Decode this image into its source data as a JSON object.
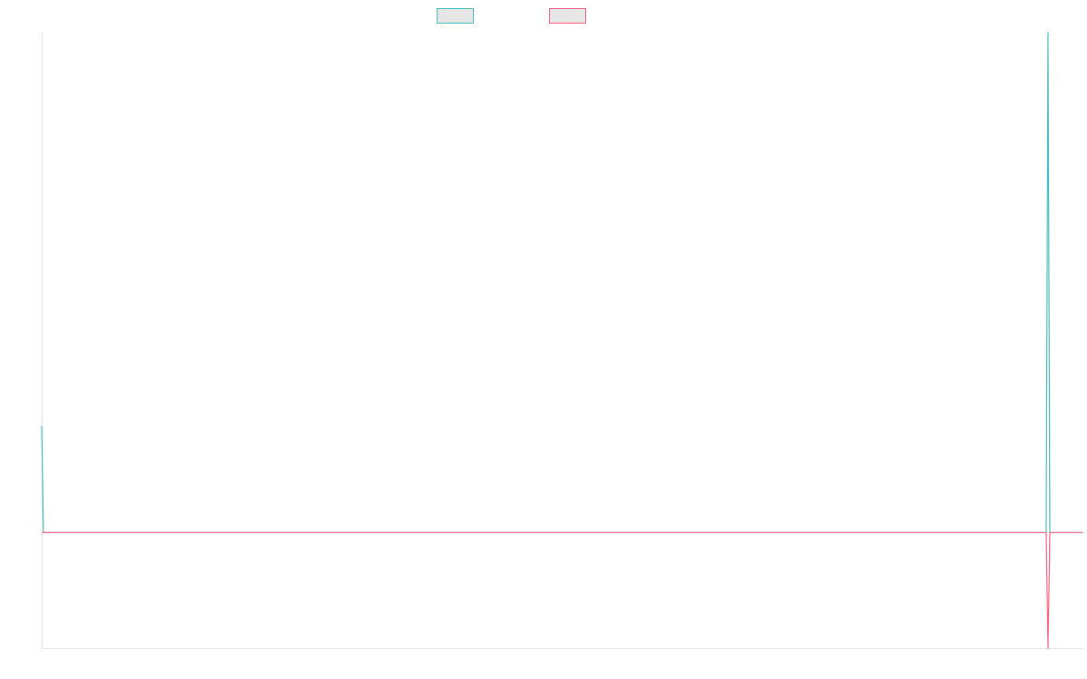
{
  "chart_data": {
    "type": "line",
    "legend_position": "top-center",
    "grid": false,
    "x": [
      0,
      1,
      2,
      3,
      4,
      5,
      6,
      7,
      8,
      9,
      10,
      11,
      12,
      13,
      14,
      15,
      16,
      17,
      18,
      19,
      20,
      21,
      22,
      23,
      24,
      25,
      26,
      27,
      28,
      29,
      30,
      31,
      32,
      33,
      34,
      35,
      36,
      37,
      38,
      39,
      40,
      41,
      42,
      43,
      44,
      45,
      46,
      47,
      48,
      49,
      50,
      51,
      52,
      53,
      54,
      55,
      56,
      57,
      58,
      59,
      60,
      61,
      62,
      63,
      64,
      65,
      66,
      67,
      68,
      69,
      70,
      71,
      72,
      73,
      74,
      75,
      76,
      77,
      78,
      79,
      80,
      81,
      82,
      83,
      84,
      85,
      86,
      87,
      88,
      89,
      90,
      91,
      92,
      93,
      94,
      95,
      96,
      97,
      98,
      99,
      100,
      101,
      102,
      103,
      104,
      105,
      106,
      107,
      108,
      109,
      110,
      111,
      112,
      113,
      114,
      115,
      116,
      117,
      118,
      119,
      120,
      121,
      122,
      123,
      124,
      125,
      126,
      127,
      128,
      129,
      130,
      131,
      132,
      133,
      134,
      135,
      136,
      137,
      138,
      139,
      140,
      141,
      142,
      143,
      144,
      145,
      146,
      147,
      148,
      149,
      150,
      151,
      152,
      153,
      154,
      155,
      156,
      157,
      158,
      159,
      160,
      161,
      162,
      163,
      164,
      165,
      166,
      167,
      168,
      169,
      170,
      171,
      172,
      173,
      174,
      175,
      176,
      177,
      178,
      179,
      180,
      181,
      182,
      183,
      184,
      185,
      186,
      187,
      188,
      189,
      190,
      191,
      192,
      193,
      194,
      195,
      196,
      197,
      198,
      199,
      200,
      201,
      202,
      203,
      204,
      205,
      206,
      207,
      208,
      209,
      210,
      211,
      212,
      213,
      214,
      215,
      216,
      217,
      218,
      219,
      220,
      221,
      222,
      223,
      224,
      225,
      226,
      227,
      228,
      229,
      230,
      231,
      232,
      233,
      234,
      235,
      236,
      237,
      238,
      239,
      240,
      241,
      242,
      243,
      244,
      245,
      246,
      247,
      248,
      249,
      250,
      251,
      252,
      253,
      254,
      255,
      256,
      257,
      258,
      259,
      260,
      261,
      262,
      263,
      264,
      265,
      266,
      267,
      268,
      269,
      270,
      271,
      272,
      273,
      274,
      275,
      276,
      277,
      278,
      279,
      280,
      281,
      282,
      283,
      284,
      285,
      286,
      287,
      288,
      289,
      290,
      291,
      292,
      293,
      294,
      295,
      296,
      297,
      298,
      299,
      300,
      301,
      302,
      303,
      304,
      305,
      306,
      307,
      308,
      309,
      310,
      311,
      312,
      313,
      314,
      315,
      316,
      317,
      318,
      319,
      320,
      321,
      322,
      323,
      324,
      325,
      326,
      327,
      328,
      329,
      330,
      331,
      332,
      333,
      334,
      335,
      336,
      337,
      338,
      339,
      340,
      341,
      342,
      343,
      344,
      345,
      346,
      347,
      348,
      349,
      350,
      351,
      352,
      353,
      354,
      355,
      356,
      357,
      358,
      359,
      360,
      361,
      362,
      363,
      364,
      365,
      366,
      367,
      368,
      369,
      370,
      371,
      372,
      373,
      374,
      375,
      376,
      377,
      378,
      379,
      380,
      381,
      382,
      383,
      384,
      385,
      386,
      387,
      388,
      389,
      390,
      391,
      392,
      393,
      394,
      395,
      396,
      397,
      398,
      399,
      400,
      401,
      402,
      403,
      404,
      405,
      406,
      407,
      408,
      409,
      410,
      411,
      412,
      413,
      414,
      415,
      416,
      417,
      418,
      419,
      420,
      421,
      422,
      423,
      424,
      425,
      426,
      427,
      428,
      429,
      430,
      431,
      432,
      433,
      434,
      435,
      436,
      437,
      438,
      439,
      440,
      441,
      442,
      443,
      444,
      445,
      446,
      447,
      448,
      449,
      450,
      451,
      452,
      453,
      454,
      455,
      456,
      457,
      458,
      459,
      460,
      461,
      462,
      463,
      464,
      465,
      466,
      467,
      468,
      469,
      470,
      471,
      472,
      473,
      474,
      475,
      476,
      477,
      478,
      479,
      480,
      481,
      482,
      483,
      484,
      485,
      486,
      487,
      488,
      489,
      490,
      491,
      492,
      493,
      494,
      495,
      496,
      497,
      498,
      499,
      500,
      501,
      502,
      503,
      504,
      505,
      506,
      507,
      508,
      509,
      510,
      511,
      512,
      513,
      514,
      515,
      516,
      517,
      518,
      519,
      520,
      521,
      522,
      523,
      524,
      525,
      526,
      527,
      528,
      529,
      530,
      531,
      532,
      533,
      534,
      535,
      536,
      537,
      538,
      539,
      540,
      541,
      542,
      543,
      544,
      545,
      546,
      547,
      548,
      549,
      550,
      551,
      552,
      553,
      554,
      555,
      556,
      557,
      558,
      559,
      560,
      561,
      562,
      563,
      564,
      565,
      566,
      567,
      568,
      569,
      570,
      571,
      572,
      573,
      574
    ],
    "series": [
      {
        "color": "#4bc0c0",
        "points": [
          [
            0,
            0.92
          ],
          [
            1,
            0
          ],
          [
            553,
            0
          ],
          [
            554,
            0
          ],
          [
            555,
            4.32
          ],
          [
            556,
            0
          ],
          [
            574,
            0
          ]
        ]
      },
      {
        "color": "#ff6384",
        "points": [
          [
            0,
            0
          ],
          [
            553,
            0
          ],
          [
            554,
            0
          ],
          [
            555,
            -1.0
          ],
          [
            556,
            0
          ],
          [
            574,
            0
          ]
        ]
      }
    ],
    "ylim": [
      -1.0,
      4.32
    ],
    "xlim": [
      0,
      574
    ]
  }
}
